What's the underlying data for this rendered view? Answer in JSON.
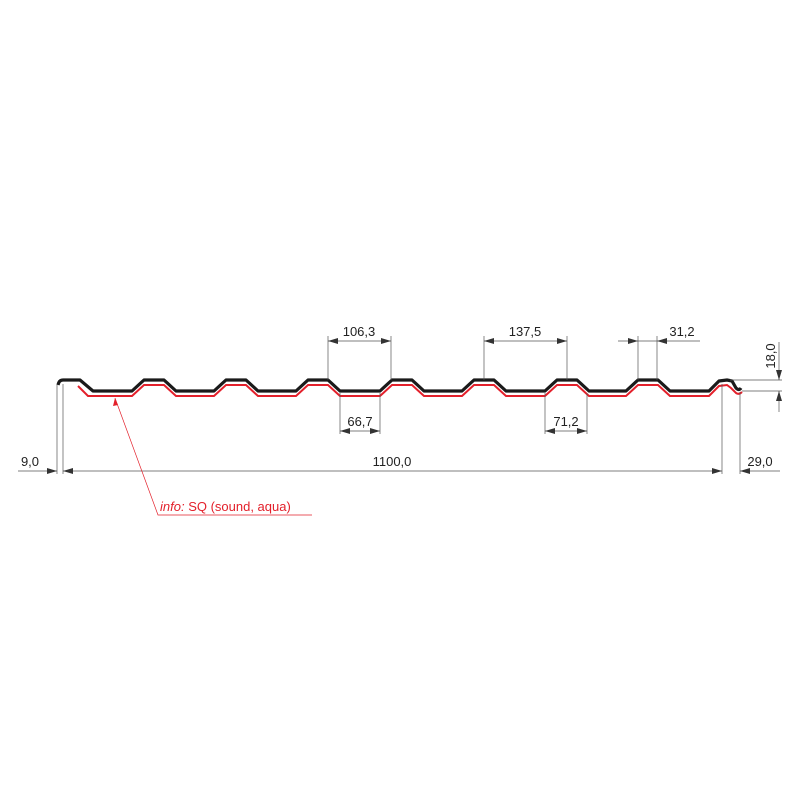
{
  "colors": {
    "profile": "#1a1a1a",
    "coating": "#e3202b",
    "dimension": "#555555"
  },
  "dimensions": {
    "rib_pitch_top": "106,3",
    "rib_pitch": "137,5",
    "rib_top_width": "31,2",
    "valley_width": "66,7",
    "valley_width_2": "71,2",
    "height": "18,0",
    "left_overhang": "9,0",
    "total_width": "1100,0",
    "right_overhang": "29,0"
  },
  "annotation": {
    "prefix": "info:",
    "text": " SQ (sound, aqua)"
  }
}
